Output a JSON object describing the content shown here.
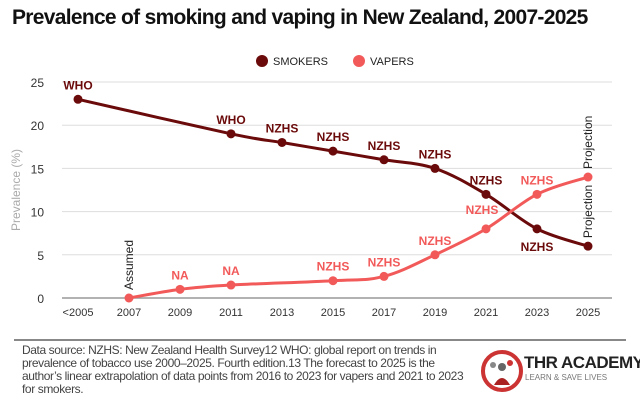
{
  "title": "Prevalence of smoking and vaping in New Zealand, 2007-2025",
  "source_note": "Data source:  NZHS: New Zealand Health Survey12 WHO: global report on trends in prevalence of tobacco use 2000–2025. Fourth edition.13 The forecast to 2025 is the author’s linear extrapolation of data points from 2016 to 2023 for vapers and 2021 to 2023 for smokers.",
  "logo": {
    "title": "THR ACADEMY",
    "subtitle": "LEARN & SAVE LIVES"
  },
  "chart_data": {
    "type": "line",
    "title": "Prevalence of smoking and vaping in New Zealand, 2007-2025",
    "xlabel": "",
    "ylabel": "Prevalence (%)",
    "ylim": [
      0,
      25
    ],
    "yticks": [
      0,
      5,
      10,
      15,
      20,
      25
    ],
    "grid": true,
    "legend": "top-center",
    "categories": [
      "<2005",
      "2007",
      "2009",
      "2011",
      "2013",
      "2015",
      "2017",
      "2019",
      "2021",
      "2023",
      "2025"
    ],
    "series": [
      {
        "name": "SMOKERS",
        "color": "#6b0a0a",
        "values": [
          23,
          null,
          null,
          19,
          18,
          17,
          16,
          15,
          12,
          8,
          6
        ],
        "labels": [
          "WHO",
          "",
          "",
          "WHO",
          "NZHS",
          "NZHS",
          "NZHS",
          "NZHS",
          "NZHS",
          "NZHS",
          "Projection"
        ]
      },
      {
        "name": "VAPERS",
        "color": "#f25a5a",
        "values": [
          null,
          0,
          1,
          1.5,
          null,
          2,
          2.5,
          5,
          8,
          12,
          14
        ],
        "labels": [
          "",
          "Assumed",
          "NA",
          "NA",
          "",
          "NZHS",
          "NZHS",
          "NZHS",
          "NZHS",
          "NZHS",
          "Projection"
        ]
      }
    ]
  }
}
